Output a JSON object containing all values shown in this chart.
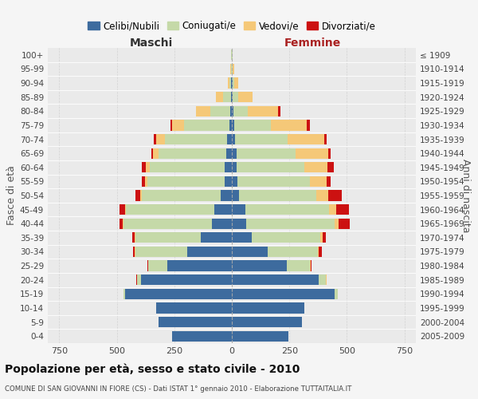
{
  "age_groups": [
    "100+",
    "95-99",
    "90-94",
    "85-89",
    "80-84",
    "75-79",
    "70-74",
    "65-69",
    "60-64",
    "55-59",
    "50-54",
    "45-49",
    "40-44",
    "35-39",
    "30-34",
    "25-29",
    "20-24",
    "15-19",
    "10-14",
    "5-9",
    "0-4"
  ],
  "birth_years": [
    "≤ 1909",
    "1910-1914",
    "1915-1919",
    "1920-1924",
    "1925-1929",
    "1930-1934",
    "1935-1939",
    "1940-1944",
    "1945-1949",
    "1950-1954",
    "1955-1959",
    "1960-1964",
    "1965-1969",
    "1970-1974",
    "1975-1979",
    "1980-1984",
    "1985-1989",
    "1990-1994",
    "1995-1999",
    "2000-2004",
    "2005-2009"
  ],
  "male": {
    "celibi": [
      0,
      1,
      3,
      5,
      8,
      12,
      22,
      25,
      32,
      32,
      48,
      75,
      85,
      135,
      195,
      280,
      395,
      465,
      330,
      320,
      260
    ],
    "coniugati": [
      2,
      3,
      8,
      32,
      85,
      195,
      268,
      295,
      325,
      335,
      345,
      385,
      385,
      285,
      225,
      85,
      18,
      5,
      0,
      0,
      0
    ],
    "vedovi": [
      1,
      2,
      6,
      32,
      62,
      52,
      38,
      22,
      16,
      11,
      6,
      5,
      3,
      2,
      1,
      0,
      0,
      0,
      0,
      0,
      0
    ],
    "divorziati": [
      0,
      0,
      0,
      0,
      2,
      8,
      12,
      8,
      20,
      15,
      20,
      25,
      15,
      12,
      8,
      2,
      2,
      1,
      0,
      0,
      0
    ]
  },
  "female": {
    "nubili": [
      0,
      1,
      3,
      5,
      8,
      10,
      15,
      20,
      20,
      25,
      32,
      58,
      62,
      88,
      155,
      238,
      378,
      448,
      315,
      305,
      245
    ],
    "coniugate": [
      2,
      3,
      8,
      22,
      62,
      158,
      228,
      258,
      295,
      315,
      335,
      365,
      385,
      298,
      218,
      102,
      32,
      12,
      0,
      0,
      0
    ],
    "vedove": [
      2,
      5,
      15,
      62,
      132,
      158,
      158,
      142,
      102,
      72,
      52,
      32,
      16,
      8,
      5,
      2,
      1,
      0,
      0,
      0,
      0
    ],
    "divorziate": [
      0,
      0,
      0,
      2,
      8,
      15,
      12,
      10,
      25,
      18,
      60,
      55,
      50,
      15,
      15,
      5,
      2,
      1,
      0,
      0,
      0
    ]
  },
  "colors": {
    "celibi": "#3d6b9e",
    "coniugati": "#c5d9a8",
    "vedovi": "#f5c878",
    "divorziati": "#cc1111"
  },
  "title": "Popolazione per età, sesso e stato civile - 2010",
  "subtitle": "COMUNE DI SAN GIOVANNI IN FIORE (CS) - Dati ISTAT 1° gennaio 2010 - Elaborazione TUTTAITALIA.IT",
  "xlabel_left": "Maschi",
  "xlabel_right": "Femmine",
  "ylabel_left": "Fasce di età",
  "ylabel_right": "Anni di nascita",
  "xlim": 800,
  "legend_labels": [
    "Celibi/Nubili",
    "Coniugati/e",
    "Vedovi/e",
    "Divorziati/e"
  ],
  "bg_color": "#f5f5f5",
  "plot_bg": "#eaeaea"
}
